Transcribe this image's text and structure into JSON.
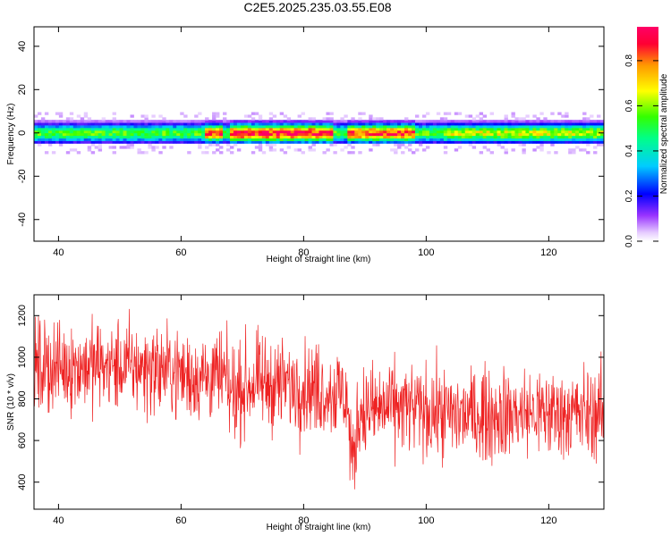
{
  "title": "C2E5.2025.235.03.55.E08",
  "chart_data": [
    {
      "type": "heatmap",
      "xlabel": "Height of straight line (km)",
      "ylabel": "Frequency (Hz)",
      "xlim": [
        36,
        129
      ],
      "ylim": [
        -50,
        49
      ],
      "xticks": [
        "40",
        "60",
        "80",
        "100",
        "120"
      ],
      "yticks": [
        "40",
        "20",
        "0",
        "-20",
        "-40"
      ],
      "colorbar": {
        "label": "Normalized spectral amplitude",
        "range": [
          0,
          0.95
        ],
        "ticks": [
          "0.0",
          "0.2",
          "0.4",
          "0.6",
          "0.8"
        ]
      },
      "band": {
        "center_hz": 0,
        "half_width_hz": 3,
        "peak_segments": [
          {
            "from_km": 64,
            "to_km": 67,
            "amplitude": 0.85
          },
          {
            "from_km": 68,
            "to_km": 85,
            "amplitude": 0.9
          },
          {
            "from_km": 87,
            "to_km": 98,
            "amplitude": 0.85
          },
          {
            "from_km": 103,
            "to_km": 129,
            "amplitude": 0.65
          }
        ]
      }
    },
    {
      "type": "line",
      "xlabel": "Height of straight line (km)",
      "ylabel": "SNR (10 * v/v)",
      "xlim": [
        36,
        129
      ],
      "ylim": [
        270,
        1300
      ],
      "xticks": [
        "40",
        "60",
        "80",
        "100",
        "120"
      ],
      "yticks": [
        "1200",
        "1000",
        "800",
        "600",
        "400"
      ],
      "series_color": "#ee2222",
      "trend": {
        "x": [
          36,
          45,
          55,
          62,
          67,
          68,
          72,
          80,
          87,
          88,
          89,
          95,
          105,
          115,
          129
        ],
        "y": [
          950,
          960,
          950,
          910,
          900,
          820,
          880,
          860,
          820,
          460,
          740,
          760,
          720,
          730,
          730
        ]
      },
      "noise_amplitude": 150
    }
  ]
}
